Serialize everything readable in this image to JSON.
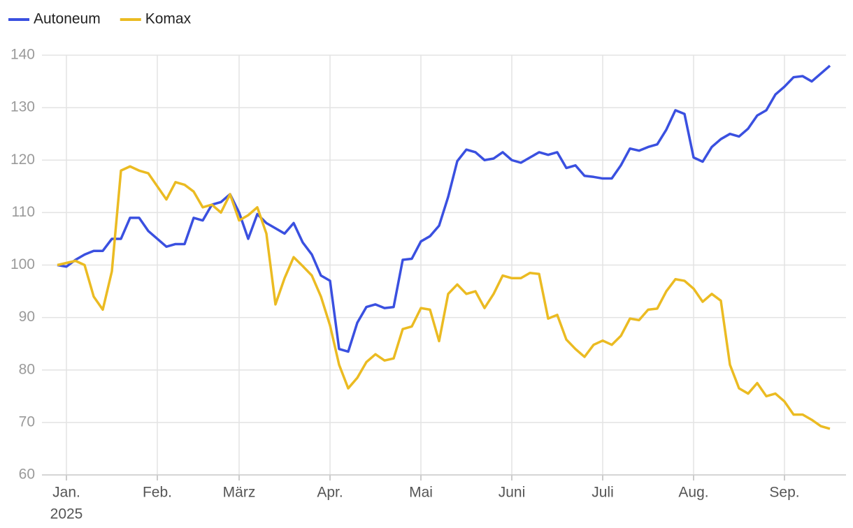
{
  "chart_data": {
    "type": "line",
    "categories": [
      null,
      "Jan.",
      null,
      null,
      null,
      null,
      null,
      null,
      null,
      null,
      null,
      "Feb.",
      null,
      null,
      null,
      null,
      null,
      null,
      null,
      null,
      "März",
      null,
      null,
      null,
      null,
      null,
      null,
      null,
      null,
      null,
      "Apr.",
      null,
      null,
      null,
      null,
      null,
      null,
      null,
      null,
      null,
      "Mai",
      null,
      null,
      null,
      null,
      null,
      null,
      null,
      null,
      null,
      "Juni",
      null,
      null,
      null,
      null,
      null,
      null,
      null,
      null,
      null,
      "Juli",
      null,
      null,
      null,
      null,
      null,
      null,
      null,
      null,
      null,
      "Aug.",
      null,
      null,
      null,
      null,
      null,
      null,
      null,
      null,
      null,
      "Sep.",
      null,
      null,
      null,
      null,
      null
    ],
    "x_year_label": "2025",
    "series": [
      {
        "name": "Autoneum",
        "color": "#3a50e0",
        "values": [
          100,
          99.7,
          101,
          102,
          102.7,
          102.7,
          105,
          105,
          109,
          109,
          106.5,
          105,
          103.5,
          104,
          104,
          109,
          108.5,
          111.5,
          112,
          113.5,
          110,
          105,
          109.7,
          108,
          107,
          106,
          108,
          104.3,
          102,
          98,
          97,
          84,
          83.5,
          89,
          92,
          92.5,
          91.8,
          92,
          101,
          101.2,
          104.5,
          105.5,
          107.5,
          113,
          119.8,
          122,
          121.5,
          120,
          120.3,
          121.5,
          120,
          119.5,
          120.5,
          121.5,
          121,
          121.5,
          118.5,
          119,
          117,
          116.8,
          116.5,
          116.5,
          119,
          122.2,
          121.8,
          122.5,
          123,
          125.8,
          129.5,
          128.8,
          120.5,
          119.7,
          122.5,
          124,
          125,
          124.5,
          126,
          128.5,
          129.5,
          132.5,
          134,
          135.8,
          136,
          135,
          136.5,
          138
        ]
      },
      {
        "name": "Komax",
        "color": "#ebbb22",
        "values": [
          100,
          100.4,
          100.8,
          100,
          94,
          91.5,
          98.8,
          118,
          118.8,
          118,
          117.5,
          115,
          112.5,
          115.8,
          115.3,
          114,
          111,
          111.5,
          110,
          113.5,
          108.5,
          109.5,
          111,
          106,
          92.5,
          97.5,
          101.5,
          99.8,
          98,
          94,
          88.5,
          81,
          76.5,
          78.5,
          81.5,
          83,
          81.8,
          82.2,
          87.8,
          88.3,
          91.8,
          91.5,
          85.5,
          94.5,
          96.3,
          94.5,
          95,
          91.8,
          94.5,
          98,
          97.5,
          97.5,
          98.5,
          98.3,
          89.8,
          90.5,
          85.8,
          84,
          82.5,
          84.8,
          85.6,
          84.8,
          86.5,
          89.8,
          89.5,
          91.5,
          91.7,
          95,
          97.3,
          97,
          95.5,
          93,
          94.5,
          93.2,
          81,
          76.5,
          75.5,
          77.5,
          75,
          75.5,
          74,
          71.5,
          71.5,
          70.5,
          69.3,
          68.8
        ]
      }
    ],
    "ylim": [
      60,
      140
    ],
    "yticks": [
      60,
      70,
      80,
      90,
      100,
      110,
      120,
      130,
      140
    ],
    "grid": true,
    "legend": "top-left"
  }
}
